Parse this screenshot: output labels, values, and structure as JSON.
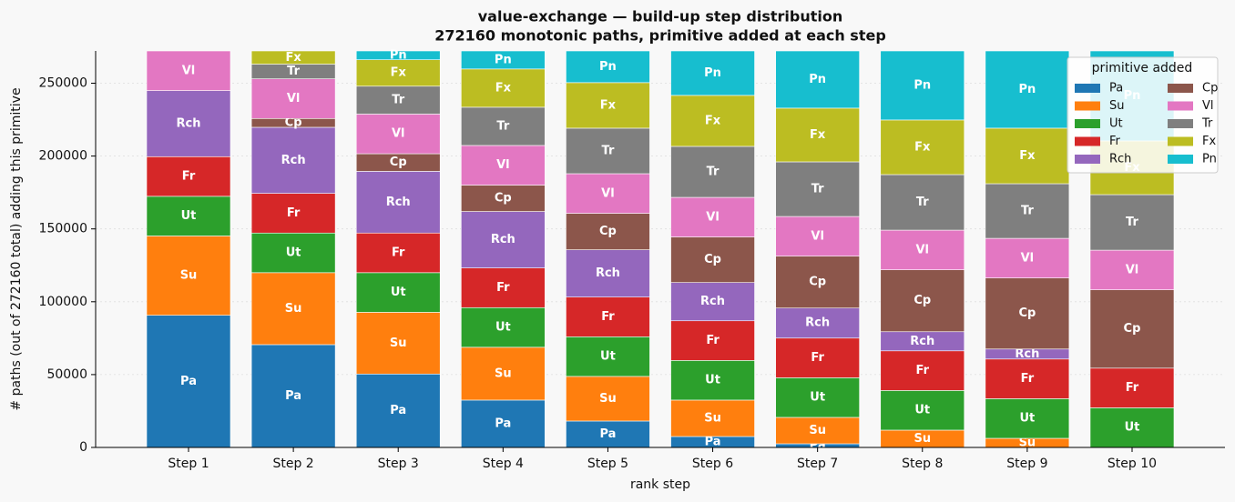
{
  "chart_data": {
    "type": "stacked_bar",
    "title": "value-exchange — build-up step distribution",
    "subtitle": "272160 monotonic paths, primitive added at each step",
    "xlabel": "rank step",
    "ylabel": "# paths (out of 272160 total) adding this primitive",
    "categories": [
      "Step 1",
      "Step 2",
      "Step 3",
      "Step 4",
      "Step 5",
      "Step 6",
      "Step 7",
      "Step 8",
      "Step 9",
      "Step 10"
    ],
    "ylim": [
      0,
      272160
    ],
    "yticks": [
      0,
      50000,
      100000,
      150000,
      200000,
      250000
    ],
    "grid": true,
    "legend_title": "primitive added",
    "legend_position": "upper right",
    "series": [
      {
        "name": "Pa",
        "color": "#1f77b4",
        "values": [
          90720,
          70560,
          50400,
          32500,
          18125,
          7500,
          2500,
          0,
          0,
          0
        ]
      },
      {
        "name": "Su",
        "color": "#ff7f0e",
        "values": [
          54432,
          49392,
          42336,
          36250,
          30625,
          25000,
          18125,
          11875,
          6250,
          0
        ]
      },
      {
        "name": "Ut",
        "color": "#2ca02c",
        "values": [
          27216,
          27216,
          27216,
          27216,
          27216,
          27216,
          27216,
          27216,
          27216,
          27216
        ]
      },
      {
        "name": "Fr",
        "color": "#d62728",
        "values": [
          27216,
          27216,
          27216,
          27216,
          27216,
          27216,
          27216,
          27216,
          27216,
          27216
        ]
      },
      {
        "name": "Rch",
        "color": "#9467bd",
        "values": [
          45360,
          45360,
          42336,
          38750,
          32500,
          26250,
          20625,
          13125,
          6875,
          0
        ]
      },
      {
        "name": "Cp",
        "color": "#8c564b",
        "values": [
          0,
          6048,
          12096,
          18125,
          25000,
          31250,
          35625,
          42500,
          48750,
          53750
        ]
      },
      {
        "name": "Vl",
        "color": "#e377c2",
        "values": [
          27216,
          27216,
          27216,
          27216,
          27216,
          27216,
          27216,
          27216,
          27216,
          27216
        ]
      },
      {
        "name": "Tr",
        "color": "#7f7f7f",
        "values": [
          0,
          10080,
          19152,
          26250,
          31250,
          35000,
          37500,
          38125,
          37500,
          38125
        ]
      },
      {
        "name": "Fx",
        "color": "#bcbd22",
        "values": [
          0,
          9072,
          18144,
          26250,
          31250,
          35000,
          36875,
          37500,
          38125,
          36875
        ]
      },
      {
        "name": "Pn",
        "color": "#17becf",
        "values": [
          0,
          0,
          6048,
          12387,
          21762,
          30512,
          39262,
          47387,
          53012,
          61762
        ]
      }
    ]
  }
}
